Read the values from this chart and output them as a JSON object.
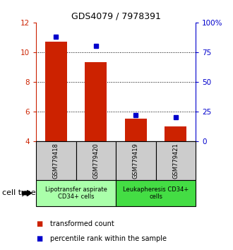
{
  "title": "GDS4079 / 7978391",
  "samples": [
    "GSM779418",
    "GSM779420",
    "GSM779419",
    "GSM779421"
  ],
  "transformed_counts": [
    10.7,
    9.35,
    5.5,
    5.0
  ],
  "percentile_pct": [
    88,
    80,
    22,
    20
  ],
  "ylim_left": [
    4,
    12
  ],
  "ylim_right": [
    0,
    100
  ],
  "left_ticks": [
    4,
    6,
    8,
    10,
    12
  ],
  "right_ticks": [
    0,
    25,
    50,
    75,
    100
  ],
  "right_tick_labels": [
    "0",
    "25",
    "50",
    "75",
    "100%"
  ],
  "bar_color": "#cc2200",
  "dot_color": "#0000cc",
  "bar_width": 0.55,
  "groups": [
    {
      "label": "Lipotransfer aspirate\nCD34+ cells",
      "color": "#aaffaa",
      "samples": [
        0,
        1
      ]
    },
    {
      "label": "Leukapheresis CD34+\ncells",
      "color": "#44dd44",
      "samples": [
        2,
        3
      ]
    }
  ],
  "cell_type_label": "cell type",
  "legend_bar_label": "transformed count",
  "legend_dot_label": "percentile rank within the sample",
  "left_axis_color": "#cc2200",
  "right_axis_color": "#0000cc",
  "sample_box_color": "#cccccc",
  "title_fontsize": 9,
  "tick_fontsize": 7.5,
  "sample_fontsize": 6,
  "group_fontsize": 6,
  "legend_fontsize": 7,
  "celltype_fontsize": 8
}
